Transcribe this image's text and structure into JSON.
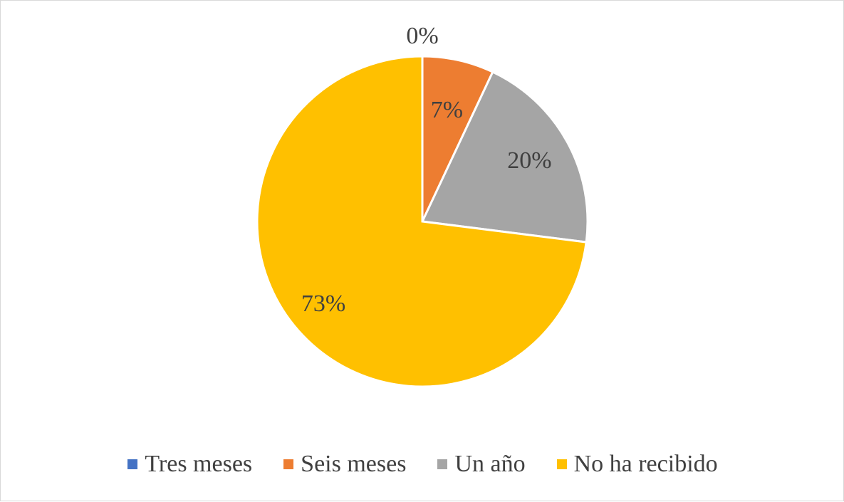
{
  "chart_data": {
    "type": "pie",
    "title": "",
    "categories": [
      "Tres meses",
      "Seis meses",
      "Un año",
      "No ha recibido"
    ],
    "values": [
      0,
      7,
      20,
      73
    ],
    "data_labels": [
      "0%",
      "7%",
      "20%",
      "73%"
    ],
    "colors": [
      "#4472C4",
      "#ED7D31",
      "#A5A5A5",
      "#FFC000"
    ],
    "legend_position": "bottom"
  }
}
